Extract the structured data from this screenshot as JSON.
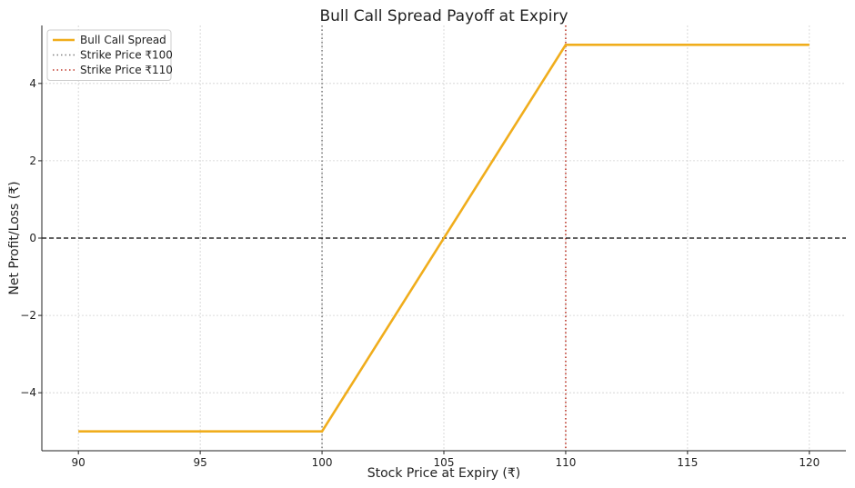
{
  "chart_data": {
    "type": "line",
    "title": "Bull Call Spread Payoff at Expiry",
    "xlabel": "Stock Price at Expiry (₹)",
    "ylabel": "Net Profit/Loss (₹)",
    "xlim": [
      88.5,
      121.5
    ],
    "ylim": [
      -5.5,
      5.5
    ],
    "xticks": [
      90,
      95,
      100,
      105,
      110,
      115,
      120
    ],
    "xtick_labels": [
      "90",
      "95",
      "100",
      "105",
      "110",
      "115",
      "120"
    ],
    "yticks": [
      -4,
      -2,
      0,
      2,
      4
    ],
    "ytick_labels": [
      "−4",
      "−2",
      "0",
      "2",
      "4"
    ],
    "grid": true,
    "legend_position": "top-left",
    "series": [
      {
        "name": "Bull Call Spread",
        "color": "#f0ad1c",
        "x": [
          90,
          100,
          110,
          120
        ],
        "y": [
          -5,
          -5,
          5,
          5
        ]
      }
    ],
    "reference_lines": [
      {
        "name": "Strike Price ₹100",
        "orientation": "vertical",
        "value": 100,
        "color": "#808080",
        "style": "dotted",
        "in_legend": true
      },
      {
        "name": "Strike Price ₹110",
        "orientation": "vertical",
        "value": 110,
        "color": "#c0392b",
        "style": "dotted",
        "in_legend": true
      },
      {
        "orientation": "horizontal",
        "value": 0,
        "color": "#000000",
        "style": "dashed",
        "in_legend": false
      }
    ]
  }
}
